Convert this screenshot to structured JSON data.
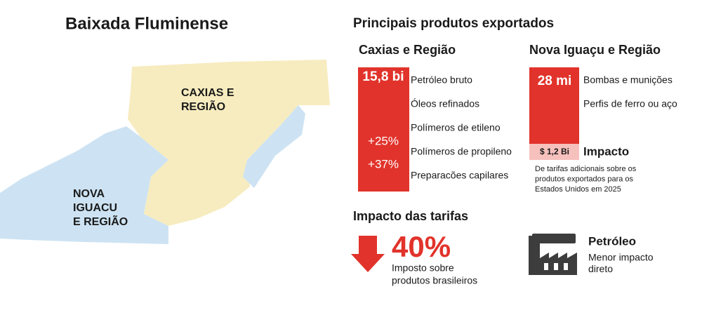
{
  "header": {
    "title": "Baixada Fluminense"
  },
  "map": {
    "caxias_label": [
      "CAXIAS E",
      "REGIÃO"
    ],
    "nova_iguacu_label": [
      "NOVA",
      "IGUACU",
      "E REGIÃO"
    ]
  },
  "exports": {
    "title": "Principais produtos exportados",
    "caxias": {
      "title": "Caxias e Região",
      "total": "15,8 bi",
      "changes": [
        "+25%",
        "+37%"
      ],
      "products": [
        "Petróleo bruto",
        "Óleos refinados",
        "Polímeros de etileno",
        "Polímeros de propileno",
        "Preparacões capilares"
      ]
    },
    "nova_iguacu": {
      "title": "Nova Iguaçu e Região",
      "total": "28 mi",
      "impact_value": "$ 1,2 Bi",
      "products": [
        "Bombas e munições",
        "Perfis de ferro ou aço"
      ],
      "impact_title": "Impacto",
      "impact_note": [
        "De tarifas adicionais sobre os",
        "produtos exportados para os",
        "Estados Unidos em 2025"
      ]
    }
  },
  "tariffs": {
    "title": "Impacto das tarifas",
    "rate": "40%",
    "rate_note": [
      "Imposto sobre",
      "produtos brasileiros"
    ],
    "oil_title": "Petróleo",
    "oil_note": [
      "Menor impacto",
      "direto"
    ]
  }
}
